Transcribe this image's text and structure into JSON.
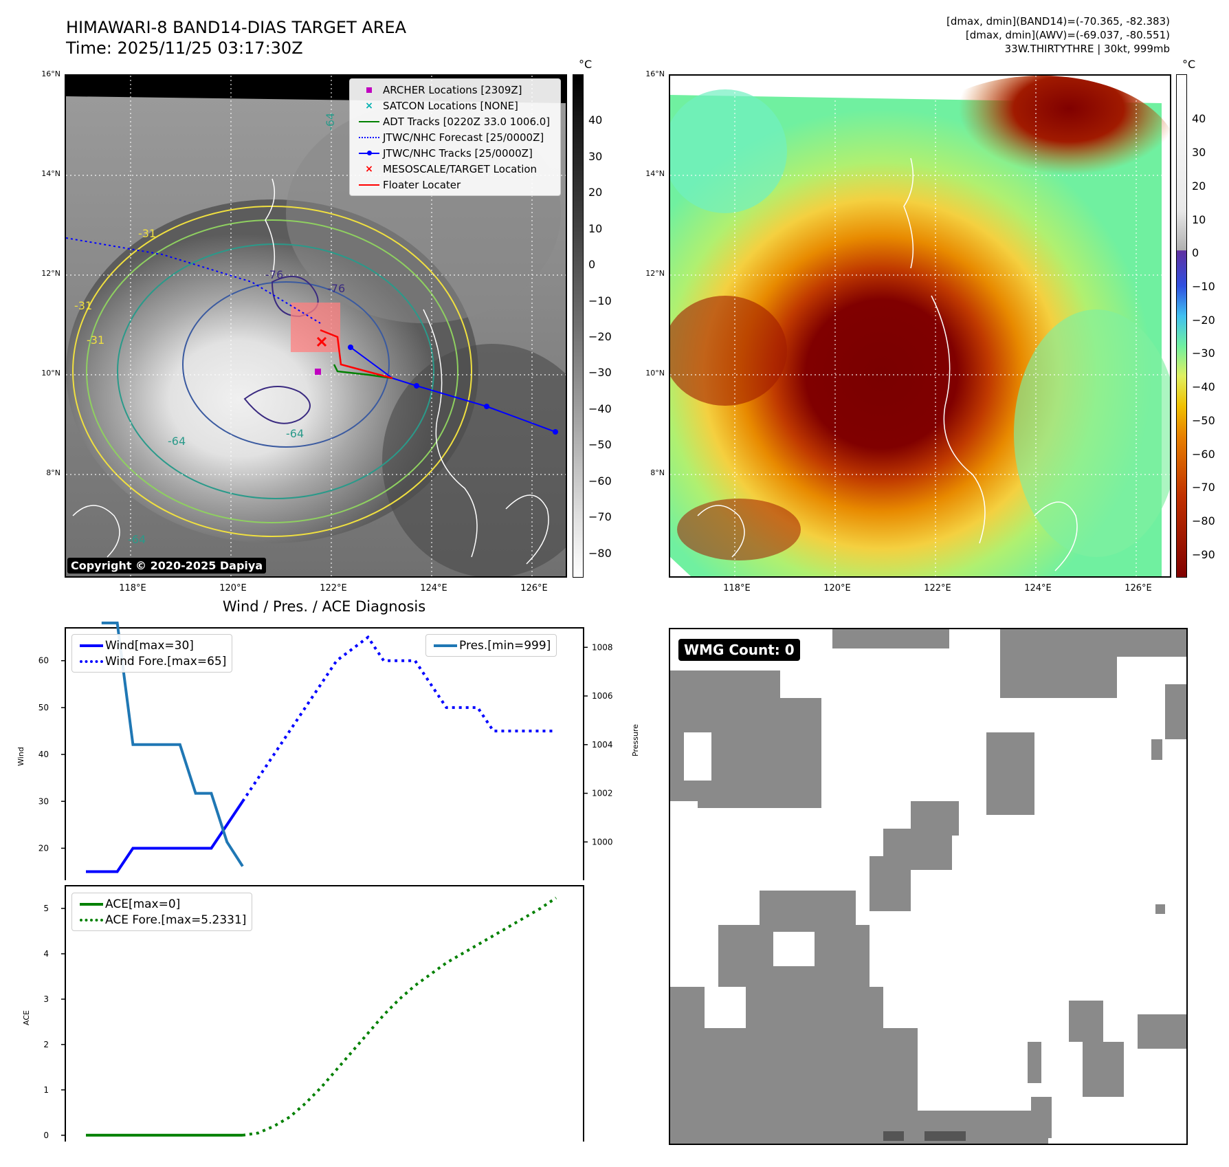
{
  "header": {
    "title_line1": "HIMAWARI-8 BAND14-DIAS TARGET AREA",
    "title_line2": "Time: 2025/11/25 03:17:30Z",
    "stats_line1": "[dmax, dmin](BAND14)=(-70.365, -82.383)",
    "stats_line2": "[dmax, dmin](AWV)=(-69.037, -80.551)",
    "stats_line3": "33W.THIRTYTHRE | 30kt, 999mb"
  },
  "map_axes": {
    "lat_labels": [
      "16°N",
      "14°N",
      "12°N",
      "10°N",
      "8°N"
    ],
    "lon_labels": [
      "118°E",
      "120°E",
      "122°E",
      "124°E",
      "126°E"
    ]
  },
  "left_map": {
    "copyright": "Copyright © 2020-2025 Dapiya",
    "contour_labels": [
      "-31",
      "-31",
      "-31",
      "-64",
      "-64",
      "-64",
      "-76",
      "-76",
      "-64"
    ],
    "colorbar": {
      "unit": "°C",
      "ticks": [
        "40",
        "30",
        "20",
        "10",
        "0",
        "−10",
        "−20",
        "−30",
        "−40",
        "−50",
        "−60",
        "−70",
        "−80"
      ]
    },
    "legend": [
      {
        "label": "ARCHER Locations [2309Z]",
        "color": "#c000c0",
        "symbol": "square-icon"
      },
      {
        "label": "SATCON Locations [NONE]",
        "color": "#00b0b0",
        "symbol": "x-icon"
      },
      {
        "label": "ADT Tracks [0220Z 33.0 1006.0]",
        "color": "#008000",
        "symbol": "line-icon"
      },
      {
        "label": "JTWC/NHC Forecast [25/0000Z]",
        "color": "#0000ff",
        "symbol": "dotted-line-icon"
      },
      {
        "label": "JTWC/NHC Tracks [25/0000Z]",
        "color": "#0000ff",
        "symbol": "line-dot-icon"
      },
      {
        "label": "MESOSCALE/TARGET Location",
        "color": "#ff0000",
        "symbol": "x-icon"
      },
      {
        "label": "Floater Locater",
        "color": "#ff0000",
        "symbol": "line-icon"
      }
    ]
  },
  "right_map": {
    "colorbar": {
      "unit": "°C",
      "ticks": [
        "40",
        "30",
        "20",
        "10",
        "0",
        "−10",
        "−20",
        "−30",
        "−40",
        "−50",
        "−60",
        "−70",
        "−80",
        "−90"
      ]
    }
  },
  "diag_title": "Wind / Pres. / ACE Diagnosis",
  "chart_data": [
    {
      "type": "line",
      "title": "Wind / Pres. / ACE Diagnosis",
      "ylabel": "Wind",
      "ylabel_right": "Pressure",
      "x": [
        0,
        1,
        2,
        3,
        4,
        5,
        6,
        7,
        8,
        9,
        10,
        11,
        12,
        13,
        14,
        15,
        16,
        17,
        18,
        19,
        20,
        21,
        22,
        23,
        24,
        25,
        26,
        27,
        28,
        29,
        30
      ],
      "ylim": [
        12,
        67
      ],
      "ylim_right": [
        998.2,
        1008.8
      ],
      "yticks": [
        20,
        30,
        40,
        50,
        60
      ],
      "yticks_right": [
        1000,
        1002,
        1004,
        1006,
        1008
      ],
      "series": [
        {
          "name": "Wind[max=30]",
          "axis": "left",
          "style": "solid",
          "color": "#0000ff",
          "x": [
            0,
            1,
            2,
            3,
            4,
            5,
            6,
            7,
            8,
            9,
            10
          ],
          "values": [
            15,
            15,
            15,
            20,
            20,
            20,
            20,
            20,
            20,
            25,
            30
          ]
        },
        {
          "name": "Wind Fore.[max=65]",
          "axis": "left",
          "style": "dotted",
          "color": "#0000ff",
          "x": [
            10,
            11,
            12,
            13,
            14,
            15,
            16,
            17,
            18,
            19,
            20,
            21,
            22,
            23,
            24,
            25,
            26,
            27,
            28,
            29,
            30
          ],
          "values": [
            30,
            35,
            40,
            45,
            50,
            55,
            60,
            62.5,
            65,
            60,
            60,
            60,
            55,
            50,
            50,
            50,
            45,
            45,
            45,
            45,
            45
          ]
        },
        {
          "name": "Pres.[min=999]",
          "axis": "right",
          "style": "solid",
          "color": "#1f77b4",
          "x": [
            1,
            2,
            3,
            4,
            5,
            6,
            7,
            8,
            9,
            10
          ],
          "values": [
            1009,
            1009,
            1004,
            1004,
            1004,
            1004,
            1002,
            1002,
            1000,
            999
          ]
        }
      ],
      "legend_left": [
        "Wind[max=30]",
        "Wind Fore.[max=65]"
      ],
      "legend_right": [
        "Pres.[min=999]"
      ]
    },
    {
      "type": "line",
      "ylabel": "ACE",
      "x": [
        0,
        1,
        2,
        3,
        4,
        5,
        6,
        7,
        8,
        9,
        10,
        11,
        12,
        13,
        14,
        15,
        16,
        17,
        18,
        19,
        20,
        21,
        22,
        23,
        24,
        25,
        26,
        27,
        28,
        29,
        30
      ],
      "ylim": [
        -0.2,
        5.5
      ],
      "yticks": [
        0,
        1,
        2,
        3,
        4,
        5
      ],
      "series": [
        {
          "name": "ACE[max=0]",
          "style": "solid",
          "color": "#008000",
          "x": [
            0,
            10
          ],
          "values": [
            0,
            0
          ]
        },
        {
          "name": "ACE Fore.[max=5.2331]",
          "style": "dotted",
          "color": "#008000",
          "x": [
            10,
            11,
            12,
            13,
            14,
            15,
            16,
            17,
            18,
            19,
            20,
            21,
            22,
            23,
            24,
            25,
            26,
            27,
            28,
            29,
            30
          ],
          "values": [
            0,
            0.05,
            0.2,
            0.4,
            0.7,
            1.05,
            1.45,
            1.85,
            2.25,
            2.65,
            3.0,
            3.3,
            3.55,
            3.8,
            4.0,
            4.2,
            4.4,
            4.6,
            4.8,
            5.0,
            5.2331
          ]
        }
      ]
    }
  ],
  "wmg": {
    "badge": "WMG Count: 0",
    "count": 0
  }
}
